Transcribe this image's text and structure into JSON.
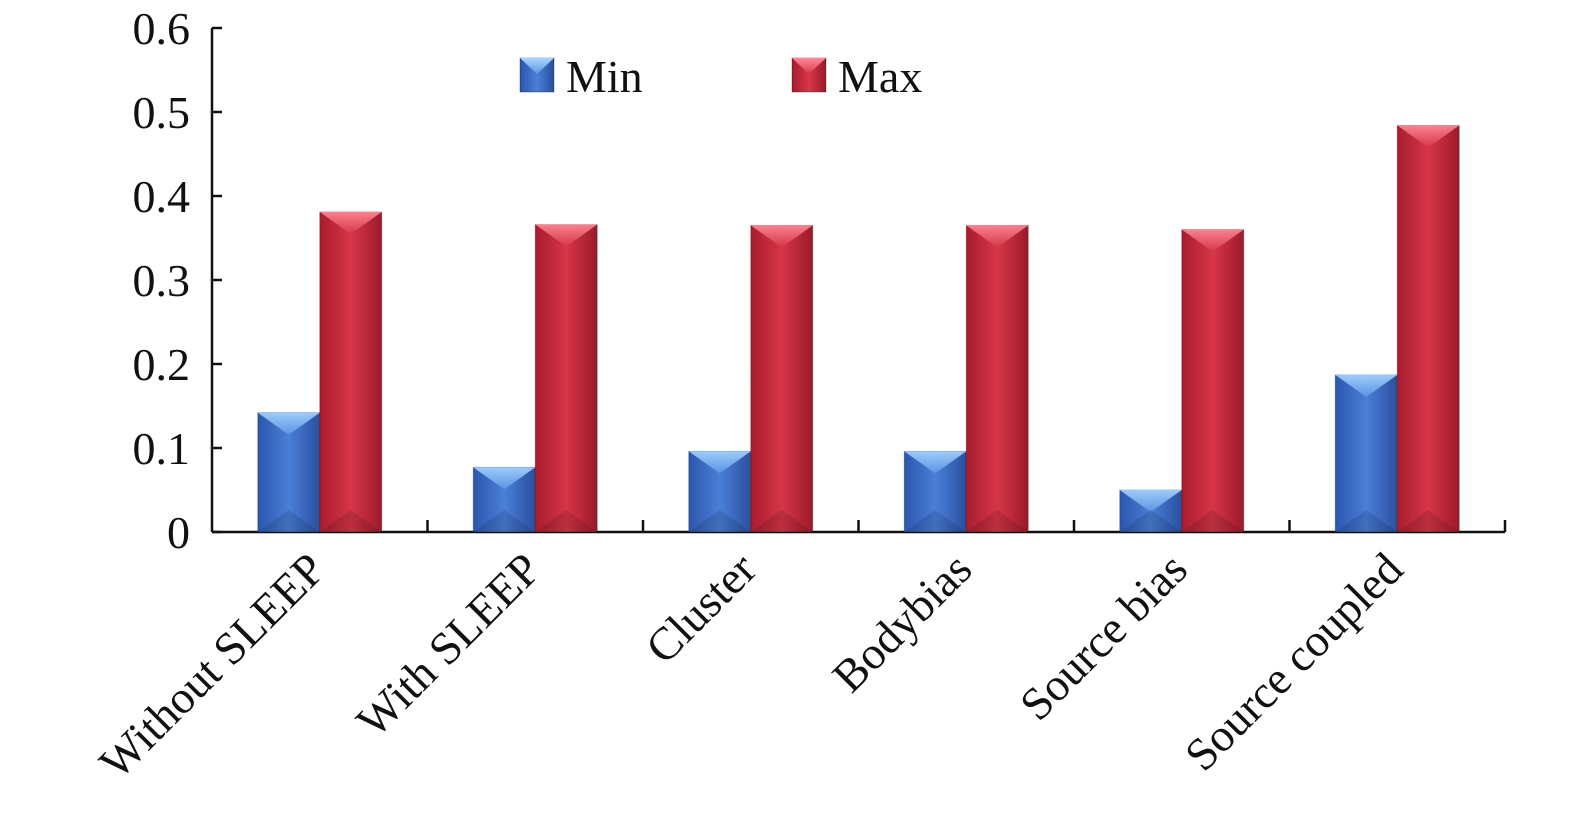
{
  "chart_data": {
    "type": "bar",
    "categories": [
      "Without SLEEP",
      "With SLEEP",
      "Cluster",
      "Bodybias",
      "Source bias",
      "Source coupled"
    ],
    "series": [
      {
        "name": "Min",
        "values": [
          0.142,
          0.077,
          0.096,
          0.096,
          0.05,
          0.187
        ],
        "color": "#3f6fc9"
      },
      {
        "name": "Max",
        "values": [
          0.381,
          0.366,
          0.365,
          0.365,
          0.36,
          0.484
        ],
        "color": "#c8283c"
      }
    ],
    "ylim": [
      0,
      0.6
    ],
    "yticks": [
      "0",
      "0.1",
      "0.2",
      "0.3",
      "0.4",
      "0.5",
      "0.6"
    ],
    "legend_position": "top-center",
    "grid": false
  }
}
